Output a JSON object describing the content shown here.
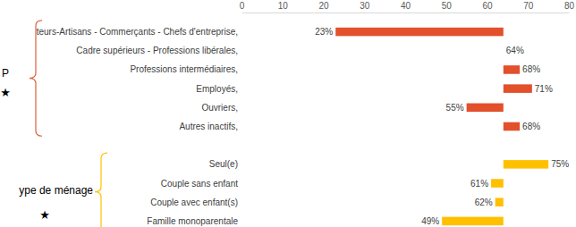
{
  "chart_data": {
    "type": "bar",
    "orientation": "horizontal",
    "categories": [
      "teurs-Artisans - Commerçants - Chefs d'entreprise,",
      "Cadre supérieurs - Professions libérales,",
      "Professions intermédiaires,",
      "Employés,",
      "Ouvriers,",
      "Autres inactifs,",
      null,
      "Seul(e)",
      "Couple sans enfant",
      "Couple avec enfant(s)",
      "Famille monoparentale"
    ],
    "values": [
      23,
      64,
      68,
      71,
      55,
      68,
      null,
      75,
      61,
      62,
      49
    ],
    "value_labels": [
      "23%",
      "64%",
      "68%",
      "71%",
      "55%",
      "68%",
      null,
      "75%",
      "61%",
      "62%",
      "49%"
    ],
    "colors": [
      "#e2502c",
      "#e2502c",
      "#e2502c",
      "#e2502c",
      "#e2502c",
      "#e2502c",
      null,
      "#ffc000",
      "#ffc000",
      "#ffc000",
      "#ffc000"
    ],
    "baseline": 64,
    "xlim": [
      0,
      80
    ],
    "xticks": [
      0,
      10,
      20,
      30,
      40,
      50,
      60,
      70,
      80
    ],
    "data_labels": true,
    "groups": [
      {
        "label": "P",
        "symbol": "★",
        "color": "#d9603b"
      },
      {
        "label": "ype de ménage",
        "symbol": "★",
        "color": "#ffc000"
      }
    ]
  }
}
